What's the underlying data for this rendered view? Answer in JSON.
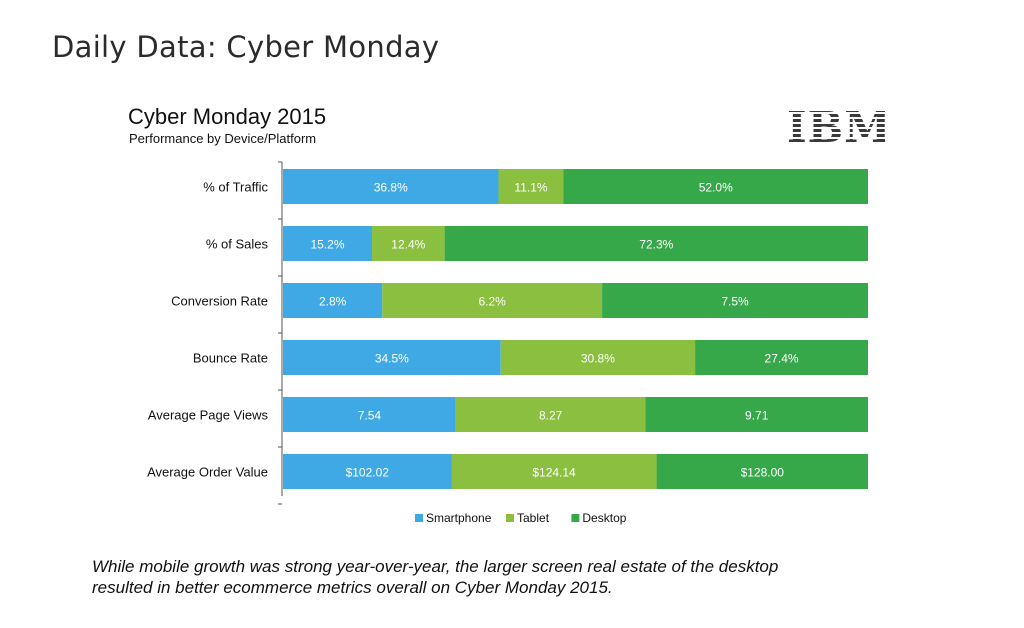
{
  "page": {
    "title": "Daily Data: Cyber Monday"
  },
  "chart_header": {
    "title": "Cyber Monday 2015",
    "subtitle": "Performance by Device/Platform",
    "logo_text": "IBM"
  },
  "caption": {
    "line1": "While mobile growth was strong year-over-year, the larger screen real estate of the desktop",
    "line2": "resulted in better ecommerce metrics overall on Cyber Monday 2015."
  },
  "chart_data": {
    "type": "bar",
    "orientation": "horizontal",
    "stacked": "100%",
    "title": "Cyber Monday 2015",
    "subtitle": "Performance by Device/Platform",
    "categories": [
      "% of Traffic",
      "% of Sales",
      "Conversion Rate",
      "Bounce Rate",
      "Average Page Views",
      "Average Order Value"
    ],
    "series": [
      {
        "name": "Smartphone",
        "color": "#3fa9e6",
        "values": [
          36.8,
          15.2,
          2.8,
          34.5,
          7.54,
          102.02
        ],
        "labels": [
          "36.8%",
          "15.2%",
          "2.8%",
          "34.5%",
          "7.54",
          "$102.02"
        ]
      },
      {
        "name": "Tablet",
        "color": "#8bbf3f",
        "values": [
          11.1,
          12.4,
          6.2,
          30.8,
          8.27,
          124.14
        ],
        "labels": [
          "11.1%",
          "12.4%",
          "6.2%",
          "30.8%",
          "8.27",
          "$124.14"
        ]
      },
      {
        "name": "Desktop",
        "color": "#36a84a",
        "values": [
          52.0,
          72.3,
          7.5,
          27.4,
          9.71,
          128.0
        ],
        "labels": [
          "52.0%",
          "72.3%",
          "7.5%",
          "27.4%",
          "9.71",
          "$128.00"
        ]
      }
    ],
    "legend": "bottom-center",
    "grid": false
  }
}
